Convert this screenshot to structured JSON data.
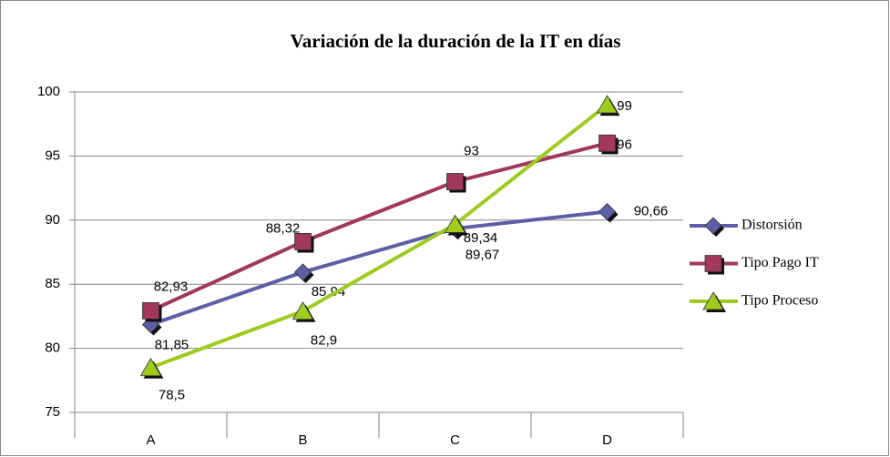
{
  "chart_data": {
    "type": "line",
    "title": "Variación de la duración de la IT en días",
    "categories": [
      "A",
      "B",
      "C",
      "D"
    ],
    "ylim": [
      75,
      100
    ],
    "yticks": [
      75,
      80,
      85,
      90,
      95,
      100
    ],
    "grid": true,
    "series": [
      {
        "name": "Distorsión",
        "color": "#5b5fa6",
        "marker": "diamond",
        "values": [
          81.85,
          85.94,
          89.34,
          90.66
        ],
        "value_labels": [
          "81,85",
          "85,94",
          "89,34",
          "90,66"
        ]
      },
      {
        "name": "Tipo Pago IT",
        "color": "#a1385c",
        "marker": "square",
        "values": [
          82.93,
          88.32,
          93,
          96
        ],
        "value_labels": [
          "82,93",
          "88,32",
          "93",
          "96"
        ]
      },
      {
        "name": "Tipo Proceso",
        "color": "#9dcc1e",
        "marker": "triangle",
        "values": [
          78.5,
          82.9,
          89.67,
          99
        ],
        "value_labels": [
          "78,5",
          "82,9",
          "89,67",
          "99"
        ]
      }
    ]
  }
}
